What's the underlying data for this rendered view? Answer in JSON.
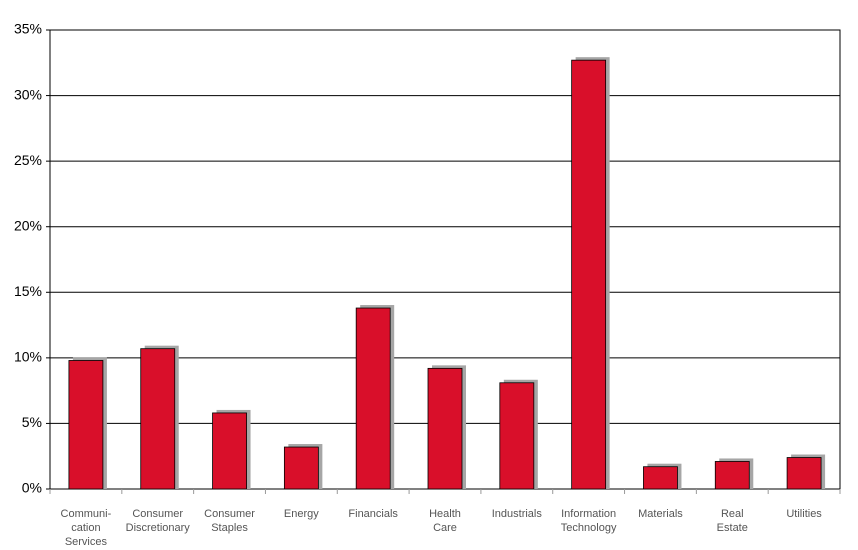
{
  "chart_data": {
    "type": "bar",
    "categories": [
      [
        "Communi-",
        "cation",
        "Services"
      ],
      [
        "Consumer",
        "Discretionary"
      ],
      [
        "Consumer",
        "Staples"
      ],
      [
        "Energy"
      ],
      [
        "Financials"
      ],
      [
        "Health",
        "Care"
      ],
      [
        "Industrials"
      ],
      [
        "Information",
        "Technology"
      ],
      [
        "Materials"
      ],
      [
        "Real",
        "Estate"
      ],
      [
        "Utilities"
      ]
    ],
    "values": [
      9.8,
      10.7,
      5.8,
      3.2,
      13.8,
      9.2,
      8.1,
      32.7,
      1.7,
      2.1,
      2.4
    ],
    "color": "#d90f2a",
    "shadow_color": "#a6a6a6",
    "ylim": [
      0,
      35
    ],
    "yticks": [
      {
        "value": 0,
        "label": "0%"
      },
      {
        "value": 5,
        "label": "5%"
      },
      {
        "value": 10,
        "label": "10%"
      },
      {
        "value": 15,
        "label": "15%"
      },
      {
        "value": 20,
        "label": "20%"
      },
      {
        "value": 25,
        "label": "25%"
      },
      {
        "value": 30,
        "label": "30%"
      },
      {
        "value": 35,
        "label": "35%"
      }
    ],
    "grid": true
  }
}
